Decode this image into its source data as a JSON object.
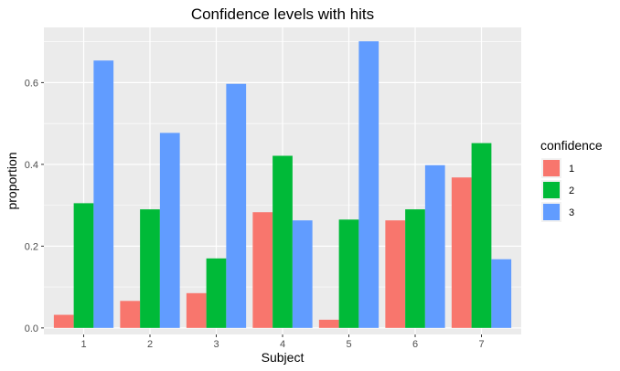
{
  "chart_data": {
    "type": "bar",
    "title": "Confidence levels with hits",
    "xlabel": "Subject",
    "ylabel": "proportion",
    "categories": [
      "1",
      "2",
      "3",
      "4",
      "5",
      "6",
      "7"
    ],
    "ylim": [
      -0.016,
      0.735
    ],
    "yticks": [
      0.0,
      0.2,
      0.4,
      0.6
    ],
    "ytick_labels": [
      "0.0",
      "0.2",
      "0.4",
      "0.6"
    ],
    "grid": true,
    "legend": {
      "title": "confidence",
      "position": "right"
    },
    "series": [
      {
        "name": "1",
        "color": "#F8766D",
        "values": [
          0.032,
          0.066,
          0.085,
          0.283,
          0.02,
          0.263,
          0.368
        ]
      },
      {
        "name": "2",
        "color": "#00BA38",
        "values": [
          0.305,
          0.29,
          0.17,
          0.421,
          0.265,
          0.29,
          0.452
        ]
      },
      {
        "name": "3",
        "color": "#619CFF",
        "values": [
          0.654,
          0.477,
          0.597,
          0.263,
          0.701,
          0.398,
          0.168
        ]
      }
    ]
  }
}
